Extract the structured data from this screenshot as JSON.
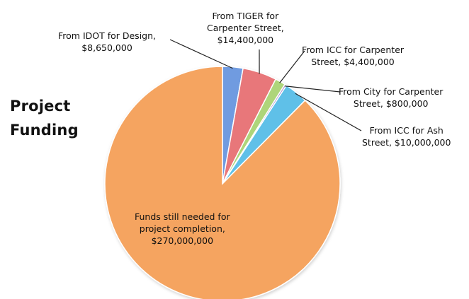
{
  "chart_data": {
    "type": "pie",
    "title": [
      "Project",
      "Funding"
    ],
    "slices": [
      {
        "name": "From IDOT for Design,",
        "value_label": "$8,650,000",
        "value": 8650000,
        "color": "#6f9be0"
      },
      {
        "name": "From TIGER for Carpenter Street,",
        "value_label": "$14,400,000",
        "value": 14400000,
        "color": "#e8777a"
      },
      {
        "name": "From ICC for Carpenter Street,",
        "value_label": "$4,400,000",
        "value": 4400000,
        "color": "#aed57a"
      },
      {
        "name": "From City for Carpenter Street,",
        "value_label": "$800,000",
        "value": 800000,
        "color": "#a98fcc"
      },
      {
        "name": "From ICC for Ash Street,",
        "value_label": "$10,000,000",
        "value": 10000000,
        "color": "#5ec0e8"
      },
      {
        "name": "Funds still needed for project completion,",
        "value_label": "$270,000,000",
        "value": 270000000,
        "color": "#f5a460"
      }
    ]
  }
}
